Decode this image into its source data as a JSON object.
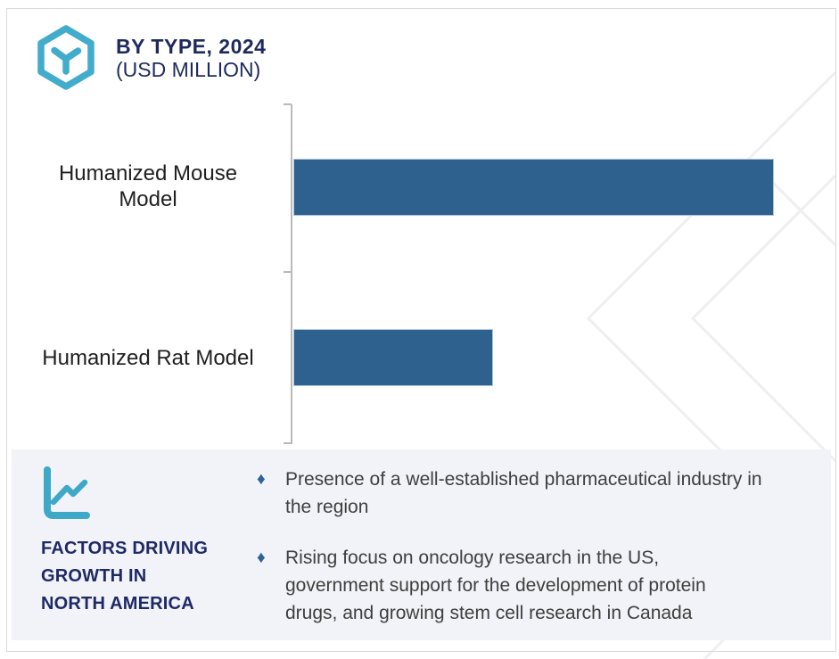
{
  "header": {
    "title": "BY TYPE, 2024",
    "subtitle": "(USD MILLION)",
    "logo_icon": "hexagon-cube-icon"
  },
  "chart_data": {
    "type": "bar",
    "orientation": "horizontal",
    "title": "BY TYPE, 2024 (USD MILLION)",
    "categories": [
      "Humanized Mouse Model",
      "Humanized Rat Model"
    ],
    "values_relative_pct_of_max": [
      100,
      41.5
    ],
    "value_labels_shown": false,
    "axis_tick_labels_shown": false,
    "bar_color": "#2f618f",
    "bar_border_color": "#aec6dc",
    "axis_color": "#b9b9b9",
    "legend": "none",
    "xlabel": "",
    "ylabel": ""
  },
  "factors_panel": {
    "icon": "trend-line-chart-icon",
    "heading_lines": [
      "FACTORS DRIVING",
      "GROWTH IN",
      "NORTH AMERICA"
    ],
    "bullets": [
      {
        "marker": "♦",
        "text": "Presence of a well-established pharmaceutical industry in the region"
      },
      {
        "marker": "♦",
        "text": "Rising focus on oncology research in the US, government support for the development of protein drugs, and growing stem cell research in Canada"
      }
    ]
  },
  "colors": {
    "accent_teal": "#42accc",
    "navy_text": "#1e2a5e",
    "bar_blue": "#2f618f",
    "panel_background": "#f2f3f8",
    "bullet_diamond": "#2d629b",
    "body_text": "#3e3e3e",
    "outer_border": "#d9d9de",
    "watermark_gray": "#efeff2"
  }
}
